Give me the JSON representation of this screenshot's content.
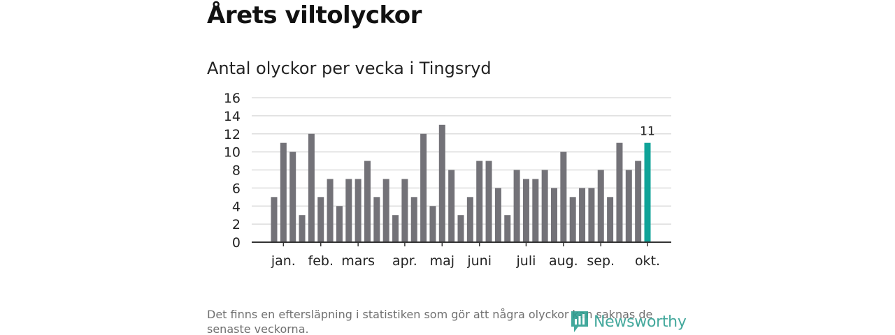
{
  "header": {
    "title": "Årets viltolyckor"
  },
  "chart_data": {
    "type": "bar",
    "title": "Antal olyckor per vecka i Tingsryd",
    "xlabel": "",
    "ylabel": "",
    "ylim": [
      0,
      16
    ],
    "yticks": [
      0,
      2,
      4,
      6,
      8,
      10,
      12,
      14,
      16
    ],
    "grid": true,
    "values": [
      5,
      11,
      10,
      3,
      12,
      5,
      7,
      4,
      7,
      7,
      9,
      5,
      7,
      3,
      7,
      5,
      12,
      4,
      13,
      8,
      3,
      5,
      9,
      9,
      6,
      3,
      8,
      7,
      7,
      8,
      6,
      10,
      5,
      6,
      6,
      8,
      5,
      11,
      8,
      9,
      11
    ],
    "month_labels": [
      {
        "label": "jan.",
        "week": 1
      },
      {
        "label": "feb.",
        "week": 5
      },
      {
        "label": "mars",
        "week": 9
      },
      {
        "label": "apr.",
        "week": 14
      },
      {
        "label": "maj",
        "week": 18
      },
      {
        "label": "juni",
        "week": 22
      },
      {
        "label": "juli",
        "week": 27
      },
      {
        "label": "aug.",
        "week": 31
      },
      {
        "label": "sep.",
        "week": 35
      },
      {
        "label": "okt.",
        "week": 40
      }
    ],
    "highlight_index": 40,
    "highlight_label": "11",
    "colors": {
      "bar": "#737278",
      "highlight": "#0fa398",
      "grid": "#dddddd",
      "axis": "#333333",
      "text": "#222222"
    }
  },
  "footer": {
    "note": "Det finns en eftersläpning i statistiken som gör att några olyckor kan saknas de senaste veckorna.",
    "logo_text": "Newsworthy",
    "logo_icon": "newsworthy-logo-icon"
  }
}
